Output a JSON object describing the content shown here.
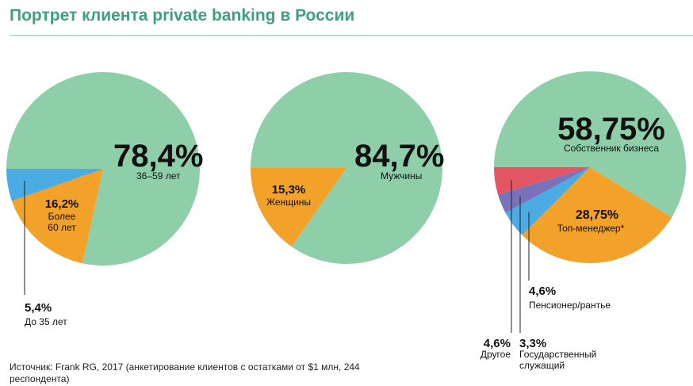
{
  "title": "Портрет клиента private banking в России",
  "source": "Источник: Frank RG, 2017 (анкетирование клиентов с остатками от $1 млн, 244 респондента)",
  "colors": {
    "title": "#3e9f83",
    "green": "#8ecfaa",
    "orange": "#f2a129",
    "blue": "#4aace3",
    "red": "#e25563",
    "purple": "#7a72b8"
  },
  "chart_data": [
    {
      "type": "pie",
      "slices": [
        {
          "label": "36–59 лет",
          "value": 78.4,
          "value_text": "78,4%",
          "color": "#8ecfaa"
        },
        {
          "label": "Более 60 лет",
          "value": 16.2,
          "value_text": "16,2%",
          "color": "#f2a129"
        },
        {
          "label": "До 35 лет",
          "value": 5.4,
          "value_text": "5,4%",
          "color": "#4aace3"
        }
      ]
    },
    {
      "type": "pie",
      "slices": [
        {
          "label": "Мужчины",
          "value": 84.7,
          "value_text": "84,7%",
          "color": "#8ecfaa"
        },
        {
          "label": "Женщины",
          "value": 15.3,
          "value_text": "15,3%",
          "color": "#f2a129"
        }
      ]
    },
    {
      "type": "pie",
      "slices": [
        {
          "label": "Собственник бизнеса",
          "value": 58.75,
          "value_text": "58,75%",
          "color": "#8ecfaa"
        },
        {
          "label": "Топ-менеджер*",
          "value": 28.75,
          "value_text": "28,75%",
          "color": "#f2a129"
        },
        {
          "label": "Пенсионер/рантье",
          "value": 4.6,
          "value_text": "4,6%",
          "color": "#4aace3"
        },
        {
          "label": "Государственный служащий",
          "value": 3.3,
          "value_text": "3,3%",
          "color": "#7a72b8"
        },
        {
          "label": "Другое",
          "value": 4.6,
          "value_text": "4,6%",
          "color": "#e25563"
        }
      ]
    }
  ]
}
